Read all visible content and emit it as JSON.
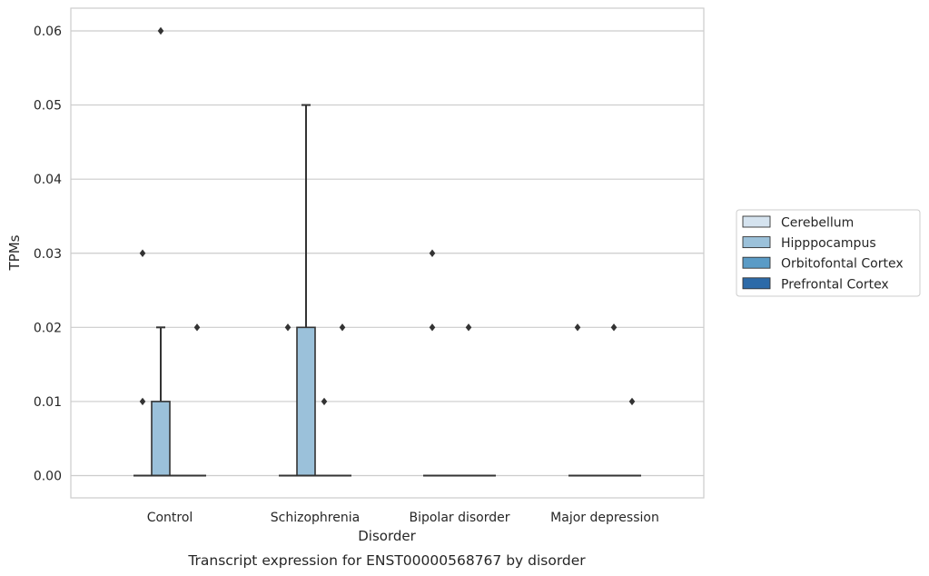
{
  "caption": "Transcript expression for ENST00000568767 by disorder",
  "chart_data": {
    "type": "box",
    "xlabel": "Disorder",
    "ylabel": "TPMs",
    "ylim": [
      -0.003,
      0.063
    ],
    "yticks": [
      "0.00",
      "0.01",
      "0.02",
      "0.03",
      "0.04",
      "0.05",
      "0.06"
    ],
    "grid": "horizontal",
    "legend_position": "right",
    "categories": [
      "Control",
      "Schizophrenia",
      "Bipolar disorder",
      "Major depression"
    ],
    "series": [
      {
        "name": "Cerebellum",
        "color": "#d5e3ef",
        "boxes": [
          {
            "category": "Control",
            "q1": 0,
            "median": 0,
            "q3": 0,
            "whisker_low": 0,
            "whisker_high": 0,
            "outliers": [
              0.01,
              0.03
            ]
          },
          {
            "category": "Schizophrenia",
            "q1": 0,
            "median": 0,
            "q3": 0,
            "whisker_low": 0,
            "whisker_high": 0,
            "outliers": [
              0.02
            ]
          },
          {
            "category": "Bipolar disorder",
            "q1": 0,
            "median": 0,
            "q3": 0,
            "whisker_low": 0,
            "whisker_high": 0,
            "outliers": [
              0.02,
              0.03
            ]
          },
          {
            "category": "Major depression",
            "q1": 0,
            "median": 0,
            "q3": 0,
            "whisker_low": 0,
            "whisker_high": 0,
            "outliers": [
              0.02
            ]
          }
        ]
      },
      {
        "name": "Hipppocampus",
        "color": "#9bc1da",
        "boxes": [
          {
            "category": "Control",
            "q1": 0,
            "median": 0,
            "q3": 0.01,
            "whisker_low": 0,
            "whisker_high": 0.02,
            "outliers": [
              0.06
            ]
          },
          {
            "category": "Schizophrenia",
            "q1": 0,
            "median": 0,
            "q3": 0.02,
            "whisker_low": 0,
            "whisker_high": 0.05,
            "outliers": []
          },
          {
            "category": "Bipolar disorder",
            "q1": 0,
            "median": 0,
            "q3": 0,
            "whisker_low": 0,
            "whisker_high": 0,
            "outliers": []
          },
          {
            "category": "Major depression",
            "q1": 0,
            "median": 0,
            "q3": 0,
            "whisker_low": 0,
            "whisker_high": 0,
            "outliers": []
          }
        ]
      },
      {
        "name": "Orbitofontal Cortex",
        "color": "#5a9bc6",
        "boxes": [
          {
            "category": "Control",
            "q1": 0,
            "median": 0,
            "q3": 0,
            "whisker_low": 0,
            "whisker_high": 0,
            "outliers": []
          },
          {
            "category": "Schizophrenia",
            "q1": 0,
            "median": 0,
            "q3": 0,
            "whisker_low": 0,
            "whisker_high": 0,
            "outliers": [
              0.01
            ]
          },
          {
            "category": "Bipolar disorder",
            "q1": 0,
            "median": 0,
            "q3": 0,
            "whisker_low": 0,
            "whisker_high": 0,
            "outliers": [
              0.02
            ]
          },
          {
            "category": "Major depression",
            "q1": 0,
            "median": 0,
            "q3": 0,
            "whisker_low": 0,
            "whisker_high": 0,
            "outliers": [
              0.02
            ]
          }
        ]
      },
      {
        "name": "Prefrontal Cortex",
        "color": "#2c6aa8",
        "boxes": [
          {
            "category": "Control",
            "q1": 0,
            "median": 0,
            "q3": 0,
            "whisker_low": 0,
            "whisker_high": 0,
            "outliers": [
              0.02
            ]
          },
          {
            "category": "Schizophrenia",
            "q1": 0,
            "median": 0,
            "q3": 0,
            "whisker_low": 0,
            "whisker_high": 0,
            "outliers": [
              0.02
            ]
          },
          {
            "category": "Bipolar disorder",
            "q1": 0,
            "median": 0,
            "q3": 0,
            "whisker_low": 0,
            "whisker_high": 0,
            "outliers": []
          },
          {
            "category": "Major depression",
            "q1": 0,
            "median": 0,
            "q3": 0,
            "whisker_low": 0,
            "whisker_high": 0,
            "outliers": [
              0.01
            ]
          }
        ]
      }
    ]
  }
}
